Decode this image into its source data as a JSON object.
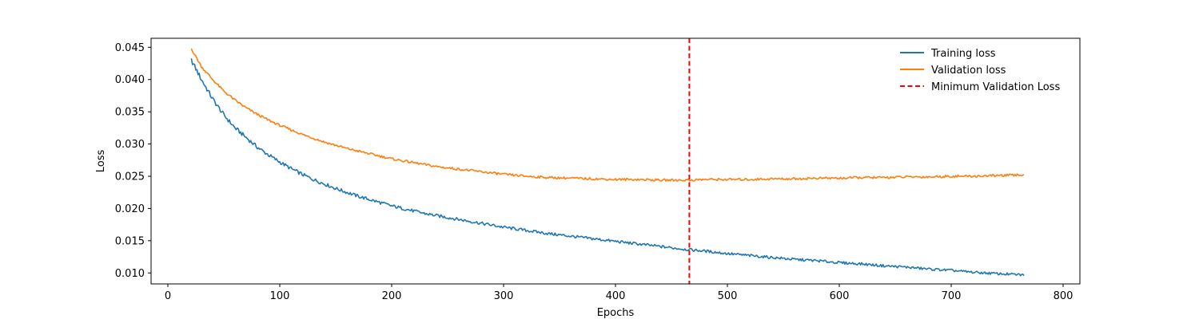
{
  "chart_data": {
    "type": "line",
    "title": "",
    "xlabel": "Epochs",
    "ylabel": "Loss",
    "xlim": [
      -15,
      815
    ],
    "ylim": [
      0.0083,
      0.0464
    ],
    "x_ticks": [
      0,
      100,
      200,
      300,
      400,
      500,
      600,
      700,
      800
    ],
    "y_ticks": [
      0.01,
      0.015,
      0.02,
      0.025,
      0.03,
      0.035,
      0.04,
      0.045
    ],
    "y_tick_labels": [
      "0.010",
      "0.015",
      "0.020",
      "0.025",
      "0.030",
      "0.035",
      "0.040",
      "0.045"
    ],
    "grid": false,
    "legend_position": "top-right",
    "series": [
      {
        "name": "Training loss",
        "color": "#1f77b4",
        "x": [
          21,
          30,
          40,
          50,
          60,
          70,
          80,
          90,
          100,
          110,
          120,
          130,
          140,
          150,
          160,
          170,
          180,
          190,
          200,
          210,
          220,
          230,
          240,
          250,
          260,
          270,
          280,
          290,
          300,
          320,
          340,
          360,
          380,
          400,
          420,
          440,
          466,
          480,
          500,
          520,
          540,
          560,
          580,
          600,
          620,
          640,
          660,
          680,
          700,
          720,
          740,
          765
        ],
        "y": [
          0.043,
          0.04,
          0.037,
          0.0345,
          0.0325,
          0.031,
          0.0295,
          0.0283,
          0.0272,
          0.0262,
          0.0253,
          0.0245,
          0.0238,
          0.0231,
          0.0225,
          0.0219,
          0.0214,
          0.0209,
          0.0204,
          0.02,
          0.0196,
          0.0192,
          0.0189,
          0.0186,
          0.0183,
          0.018,
          0.0177,
          0.0174,
          0.0171,
          0.0166,
          0.0161,
          0.0157,
          0.0153,
          0.0149,
          0.0145,
          0.0141,
          0.0136,
          0.0134,
          0.013,
          0.0127,
          0.0124,
          0.0121,
          0.0119,
          0.0116,
          0.0114,
          0.0111,
          0.0109,
          0.0106,
          0.0104,
          0.0101,
          0.0099,
          0.0097
        ]
      },
      {
        "name": "Validation loss",
        "color": "#ff7f0e",
        "x": [
          21,
          30,
          40,
          50,
          60,
          70,
          80,
          90,
          100,
          110,
          120,
          130,
          140,
          150,
          160,
          170,
          180,
          190,
          200,
          210,
          220,
          230,
          240,
          250,
          260,
          270,
          280,
          290,
          300,
          320,
          340,
          360,
          380,
          400,
          420,
          440,
          466,
          480,
          500,
          520,
          540,
          560,
          580,
          600,
          620,
          640,
          660,
          680,
          700,
          720,
          740,
          765
        ],
        "y": [
          0.0448,
          0.042,
          0.04,
          0.0382,
          0.0368,
          0.0356,
          0.0346,
          0.0337,
          0.0329,
          0.0322,
          0.0315,
          0.0309,
          0.0303,
          0.0298,
          0.0293,
          0.0289,
          0.0285,
          0.0281,
          0.0277,
          0.0274,
          0.0271,
          0.0268,
          0.0265,
          0.0263,
          0.0261,
          0.0259,
          0.0257,
          0.0255,
          0.0253,
          0.025,
          0.0248,
          0.0247,
          0.0246,
          0.0245,
          0.0245,
          0.0244,
          0.0244,
          0.0245,
          0.0245,
          0.0245,
          0.0246,
          0.0246,
          0.0247,
          0.0247,
          0.0248,
          0.0248,
          0.0249,
          0.0249,
          0.025,
          0.025,
          0.0251,
          0.0252
        ]
      },
      {
        "name": "Minimum Validation Loss",
        "color": "#ff0000",
        "style": "dashed",
        "type": "vline",
        "x_value": 466
      }
    ]
  }
}
